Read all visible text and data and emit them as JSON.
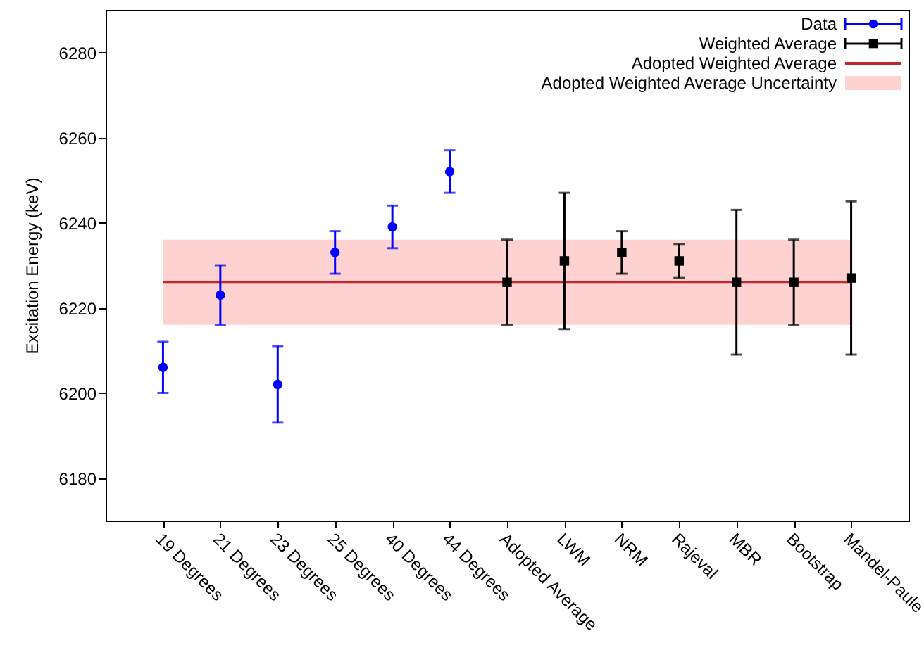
{
  "chart_data": {
    "type": "scatter",
    "ylabel": "Excitation Energy (keV)",
    "categories": [
      "19 Degrees",
      "21 Degrees",
      "23 Degrees",
      "25 Degrees",
      "40 Degrees",
      "44 Degrees",
      "Adopted Average",
      "LWM",
      "NRM",
      "Rajeval",
      "MBR",
      "Bootstrap",
      "Mandel-Paule"
    ],
    "series": [
      {
        "name": "Data",
        "color": "#0000ff",
        "marker": "circle",
        "values": [
          6206,
          6223,
          6202,
          6233,
          6239,
          6252,
          null,
          null,
          null,
          null,
          null,
          null,
          null
        ],
        "errors": [
          [
            6200,
            6212
          ],
          [
            6216,
            6230
          ],
          [
            6193,
            6211
          ],
          [
            6228,
            6238
          ],
          [
            6234,
            6244
          ],
          [
            6247,
            6257
          ],
          null,
          null,
          null,
          null,
          null,
          null,
          null
        ]
      },
      {
        "name": "Weighted Average",
        "color": "#000000",
        "marker": "square",
        "values": [
          null,
          null,
          null,
          null,
          null,
          null,
          6226,
          6231,
          6233,
          6231,
          6226,
          6226,
          6227
        ],
        "errors": [
          null,
          null,
          null,
          null,
          null,
          null,
          [
            6216,
            6236
          ],
          [
            6215,
            6247
          ],
          [
            6228,
            6238
          ],
          [
            6227,
            6235
          ],
          [
            6209,
            6243
          ],
          [
            6216,
            6236
          ],
          [
            6209,
            6245
          ]
        ]
      }
    ],
    "ref_lines": [
      {
        "axis": "y",
        "value": 6226,
        "label": "Adopted Weighted Average",
        "color": "#c0282d"
      }
    ],
    "bands": [
      {
        "axis": "y",
        "from": 6216,
        "to": 6236,
        "label": "Adopted Weighted Average Uncertainty",
        "color": "#ff4d4d"
      }
    ],
    "ylim": [
      6170,
      6290
    ],
    "yticks": [
      6180,
      6200,
      6220,
      6240,
      6260,
      6280
    ],
    "grid": false,
    "legend": "top right"
  }
}
